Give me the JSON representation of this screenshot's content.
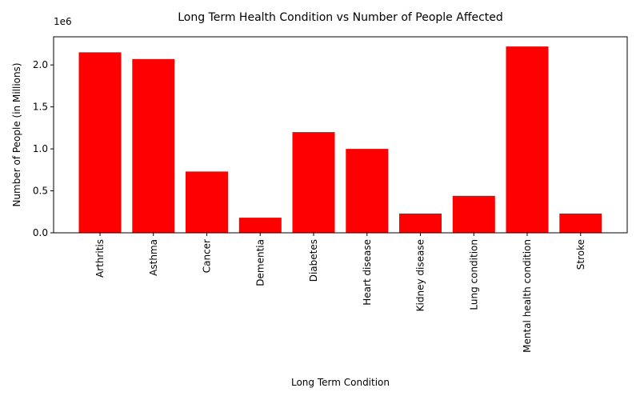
{
  "chart_data": {
    "type": "bar",
    "title": "Long Term Health Condition vs Number of People Affected",
    "xlabel": "Long Term Condition",
    "ylabel": "Number of People (in Millions)",
    "y_offset_label": "1e6",
    "categories": [
      "Arthritis",
      "Asthma",
      "Cancer",
      "Dementia",
      "Diabetes",
      "Heart disease",
      "Kidney disease",
      "Lung condition",
      "Mental health condition",
      "Stroke"
    ],
    "values": [
      2150000,
      2070000,
      730000,
      180000,
      1200000,
      1000000,
      230000,
      440000,
      2220000,
      230000
    ],
    "ylim": [
      0,
      2335000
    ],
    "yticks": [
      0,
      500000,
      1000000,
      1500000,
      2000000
    ],
    "ytick_labels": [
      "0.0",
      "0.5",
      "1.0",
      "1.5",
      "2.0"
    ],
    "bar_color": "#ff0000",
    "grid": false,
    "legend": "none"
  }
}
